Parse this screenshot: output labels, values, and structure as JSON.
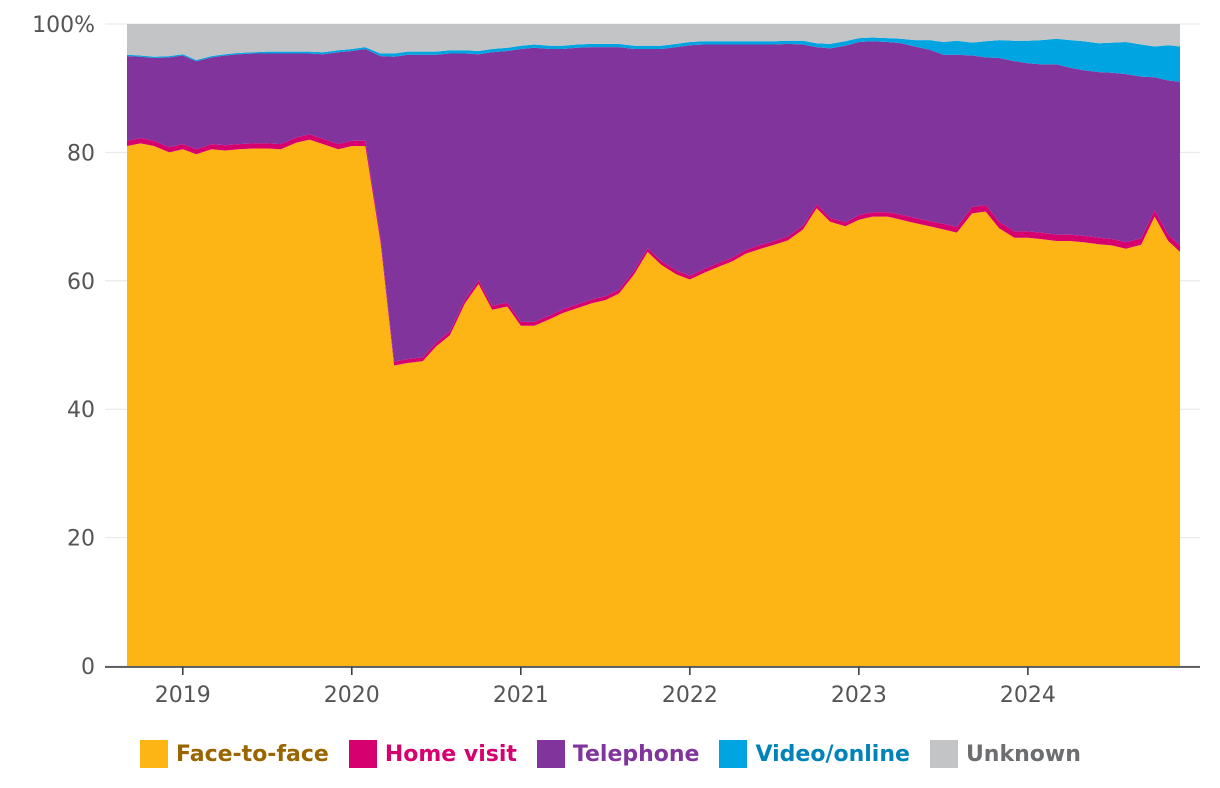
{
  "chart_data": {
    "type": "area",
    "stacked": true,
    "percent": true,
    "ylim": [
      0,
      100
    ],
    "ytick_labels": [
      "0",
      "20",
      "40",
      "60",
      "80",
      "100%"
    ],
    "yticks": [
      0,
      20,
      40,
      60,
      80,
      100
    ],
    "xlim": [
      2018.65,
      2024.9
    ],
    "xticks": [
      2019,
      2020,
      2021,
      2022,
      2023,
      2024
    ],
    "xtick_labels": [
      "2019",
      "2020",
      "2021",
      "2022",
      "2023",
      "2024"
    ],
    "grid": true,
    "legend_position": "bottom",
    "x": [
      2018.67,
      2018.75,
      2018.83,
      2018.92,
      2019.0,
      2019.08,
      2019.17,
      2019.25,
      2019.33,
      2019.42,
      2019.5,
      2019.58,
      2019.67,
      2019.75,
      2019.83,
      2019.92,
      2020.0,
      2020.08,
      2020.17,
      2020.25,
      2020.33,
      2020.42,
      2020.5,
      2020.58,
      2020.67,
      2020.75,
      2020.83,
      2020.92,
      2021.0,
      2021.08,
      2021.17,
      2021.25,
      2021.33,
      2021.42,
      2021.5,
      2021.58,
      2021.67,
      2021.75,
      2021.83,
      2021.92,
      2022.0,
      2022.08,
      2022.17,
      2022.25,
      2022.33,
      2022.42,
      2022.5,
      2022.58,
      2022.67,
      2022.75,
      2022.83,
      2022.92,
      2023.0,
      2023.08,
      2023.17,
      2023.25,
      2023.33,
      2023.42,
      2023.5,
      2023.58,
      2023.67,
      2023.75,
      2023.83,
      2023.92,
      2024.0,
      2024.08,
      2024.17,
      2024.25,
      2024.33,
      2024.42,
      2024.5,
      2024.58,
      2024.67,
      2024.75,
      2024.83,
      2024.9
    ],
    "series": [
      {
        "name": "Face-to-face",
        "color": "#fdb515",
        "values": [
          81,
          81.4,
          81,
          80,
          80.5,
          79.7,
          80.5,
          80.3,
          80.5,
          80.6,
          80.6,
          80.5,
          81.5,
          82,
          81.3,
          80.5,
          81,
          81,
          66,
          46.8,
          47.2,
          47.5,
          49.8,
          51.5,
          56.5,
          59.5,
          55.5,
          56,
          53,
          53,
          54,
          55,
          55.7,
          56.5,
          57,
          58,
          61,
          64.5,
          62.5,
          61,
          60.2,
          61.2,
          62.2,
          63,
          64.2,
          65,
          65.6,
          66.3,
          68,
          71.3,
          69.2,
          68.5,
          69.5,
          70,
          70,
          69.5,
          69,
          68.5,
          68,
          67.5,
          70.5,
          70.8,
          68.2,
          66.7,
          66.7,
          66.5,
          66.2,
          66.2,
          66,
          65.7,
          65.5,
          65,
          65.6,
          70,
          66.2,
          64.5
        ]
      },
      {
        "name": "Home visit",
        "color": "#d6006f",
        "values": [
          0.8,
          0.8,
          0.8,
          0.8,
          0.8,
          0.8,
          0.8,
          0.8,
          0.8,
          0.8,
          0.8,
          0.8,
          0.8,
          0.8,
          0.8,
          0.8,
          0.8,
          0.8,
          0.7,
          0.6,
          0.6,
          0.6,
          0.6,
          0.6,
          0.6,
          0.6,
          0.6,
          0.6,
          0.6,
          0.6,
          0.6,
          0.6,
          0.6,
          0.6,
          0.6,
          0.6,
          0.6,
          0.6,
          0.6,
          0.6,
          0.6,
          0.6,
          0.6,
          0.6,
          0.6,
          0.6,
          0.6,
          0.6,
          0.6,
          0.6,
          0.6,
          0.6,
          0.7,
          0.7,
          0.7,
          0.8,
          0.8,
          0.8,
          0.9,
          0.9,
          1.0,
          1.0,
          1.0,
          1.0,
          1.0,
          1.0,
          1.0,
          1.0,
          1.0,
          1.0,
          1.0,
          1.0,
          1.0,
          1.0,
          1.0,
          1.0
        ]
      },
      {
        "name": "Telephone",
        "color": "#82349d",
        "values": [
          13.2,
          12.7,
          12.9,
          14.0,
          13.8,
          13.7,
          13.5,
          14.0,
          14.0,
          14.0,
          14.0,
          14.1,
          13.1,
          12.6,
          13.2,
          14.3,
          14.0,
          14.3,
          28.3,
          47.5,
          47.4,
          47.1,
          44.8,
          43.3,
          38.3,
          35.2,
          39.5,
          39.2,
          42.5,
          42.7,
          41.5,
          40.5,
          40.0,
          39.3,
          38.8,
          37.8,
          34.5,
          31.0,
          33.0,
          34.8,
          35.9,
          35.0,
          34.0,
          33.2,
          32.0,
          31.2,
          30.6,
          30.0,
          28.2,
          24.5,
          26.4,
          27.5,
          27.0,
          26.6,
          26.5,
          26.7,
          26.7,
          26.7,
          26.3,
          26.8,
          23.6,
          23.0,
          25.5,
          26.5,
          26.2,
          26.2,
          26.5,
          26.0,
          25.8,
          25.8,
          25.9,
          26.2,
          25.2,
          20.7,
          24.0,
          25.5
        ]
      },
      {
        "name": "Video/online",
        "color": "#00a4e0",
        "values": [
          0.2,
          0.2,
          0.2,
          0.2,
          0.2,
          0.2,
          0.2,
          0.2,
          0.2,
          0.2,
          0.3,
          0.3,
          0.3,
          0.3,
          0.3,
          0.3,
          0.3,
          0.3,
          0.4,
          0.5,
          0.5,
          0.5,
          0.5,
          0.5,
          0.5,
          0.5,
          0.5,
          0.5,
          0.5,
          0.5,
          0.5,
          0.5,
          0.5,
          0.5,
          0.5,
          0.5,
          0.5,
          0.5,
          0.5,
          0.5,
          0.5,
          0.5,
          0.5,
          0.5,
          0.5,
          0.5,
          0.5,
          0.5,
          0.6,
          0.6,
          0.7,
          0.7,
          0.6,
          0.6,
          0.6,
          0.7,
          1.0,
          1.5,
          2.0,
          2.2,
          2.0,
          2.5,
          2.8,
          3.2,
          3.5,
          3.8,
          4.0,
          4.3,
          4.5,
          4.5,
          4.7,
          5.0,
          5.0,
          4.8,
          5.5,
          5.5
        ]
      },
      {
        "name": "Unknown",
        "color": "#c3c4c6",
        "values": [
          4.8,
          4.9,
          5.1,
          5.0,
          4.7,
          5.6,
          5.0,
          4.7,
          4.5,
          4.4,
          4.3,
          4.3,
          4.3,
          4.3,
          4.4,
          4.1,
          3.9,
          3.6,
          4.6,
          4.6,
          4.3,
          4.3,
          4.3,
          4.1,
          4.1,
          4.2,
          3.9,
          3.7,
          3.4,
          3.2,
          3.4,
          3.4,
          3.2,
          3.1,
          3.1,
          3.1,
          3.4,
          3.4,
          3.4,
          3.1,
          2.8,
          2.7,
          2.7,
          2.7,
          2.7,
          2.7,
          2.7,
          2.6,
          2.6,
          3.0,
          3.1,
          2.7,
          2.2,
          2.1,
          2.2,
          2.3,
          2.5,
          2.5,
          2.8,
          2.6,
          2.9,
          2.7,
          2.5,
          2.6,
          2.6,
          2.5,
          2.3,
          2.5,
          2.7,
          3.0,
          2.9,
          2.8,
          3.2,
          3.5,
          3.3,
          3.5
        ]
      }
    ]
  }
}
